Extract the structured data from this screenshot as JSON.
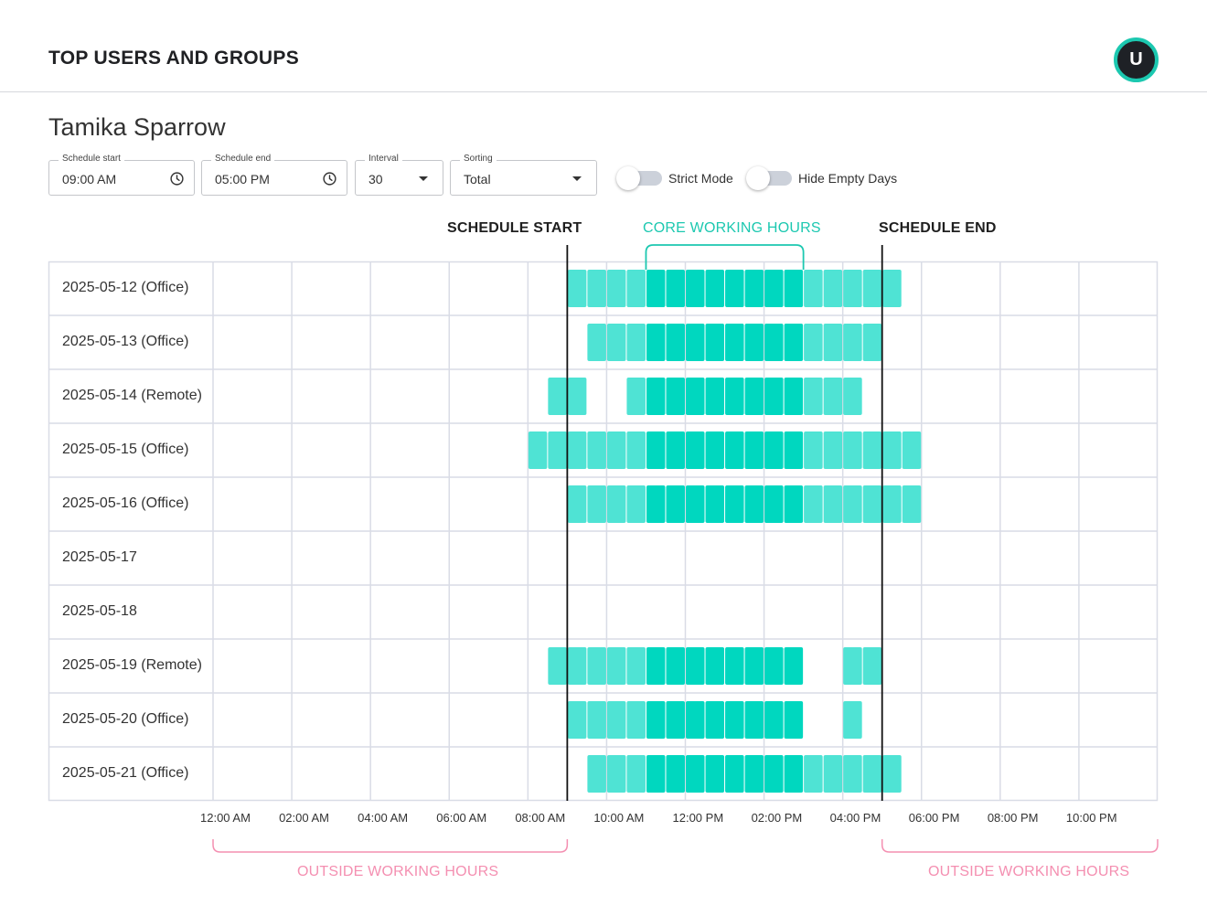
{
  "header": {
    "title": "TOP USERS AND GROUPS",
    "avatar_initial": "U"
  },
  "user": {
    "name": "Tamika Sparrow"
  },
  "controls": {
    "schedule_start": {
      "label": "Schedule start",
      "value": "09:00 AM",
      "icon": "clock-icon"
    },
    "schedule_end": {
      "label": "Schedule end",
      "value": "05:00 PM",
      "icon": "clock-icon"
    },
    "interval": {
      "label": "Interval",
      "value": "30",
      "icon": "caret-down-icon"
    },
    "sorting": {
      "label": "Sorting",
      "value": "Total",
      "icon": "caret-down-icon"
    },
    "strict_mode": {
      "label": "Strict Mode",
      "on": false
    },
    "hide_empty_days": {
      "label": "Hide Empty Days",
      "on": false
    }
  },
  "annotations": {
    "schedule_start": "SCHEDULE START",
    "core_hours": "CORE WORKING HOURS",
    "schedule_end": "SCHEDULE END",
    "outside_left": "OUTSIDE WORKING HOURS",
    "outside_right": "OUTSIDE WORKING HOURS"
  },
  "colors": {
    "core": "#00d7bf",
    "regular": "#4fe3d4",
    "grid": "#d9dce6",
    "marker": "#111111",
    "teal_accent": "#1cc8b0",
    "pink_accent": "#f48fb1"
  },
  "chart_data": {
    "type": "heatmap",
    "x_unit": "hours",
    "xlim": [
      0,
      24
    ],
    "interval_hours": 0.5,
    "schedule_start_hour": 9,
    "schedule_end_hour": 17,
    "core_hours": [
      11,
      15
    ],
    "tick_labels": [
      "12:00 AM",
      "02:00 AM",
      "04:00 AM",
      "06:00 AM",
      "08:00 AM",
      "10:00 AM",
      "12:00 PM",
      "02:00 PM",
      "04:00 PM",
      "06:00 PM",
      "08:00 PM",
      "10:00 PM"
    ],
    "rows": [
      {
        "label": "2025-05-12 (Office)",
        "active": [
          [
            9,
            17.5
          ]
        ]
      },
      {
        "label": "2025-05-13 (Office)",
        "active": [
          [
            9.5,
            17
          ]
        ]
      },
      {
        "label": "2025-05-14 (Remote)",
        "active": [
          [
            8.5,
            9.5
          ],
          [
            10.5,
            16.5
          ]
        ]
      },
      {
        "label": "2025-05-15 (Office)",
        "active": [
          [
            8,
            18
          ]
        ]
      },
      {
        "label": "2025-05-16 (Office)",
        "active": [
          [
            9,
            18
          ]
        ]
      },
      {
        "label": "2025-05-17",
        "active": []
      },
      {
        "label": "2025-05-18",
        "active": []
      },
      {
        "label": "2025-05-19 (Remote)",
        "active": [
          [
            8.5,
            15
          ],
          [
            16,
            17
          ]
        ]
      },
      {
        "label": "2025-05-20 (Office)",
        "active": [
          [
            9,
            15
          ],
          [
            16,
            16.5
          ]
        ]
      },
      {
        "label": "2025-05-21 (Office)",
        "active": [
          [
            9.5,
            17.5
          ]
        ]
      }
    ]
  }
}
